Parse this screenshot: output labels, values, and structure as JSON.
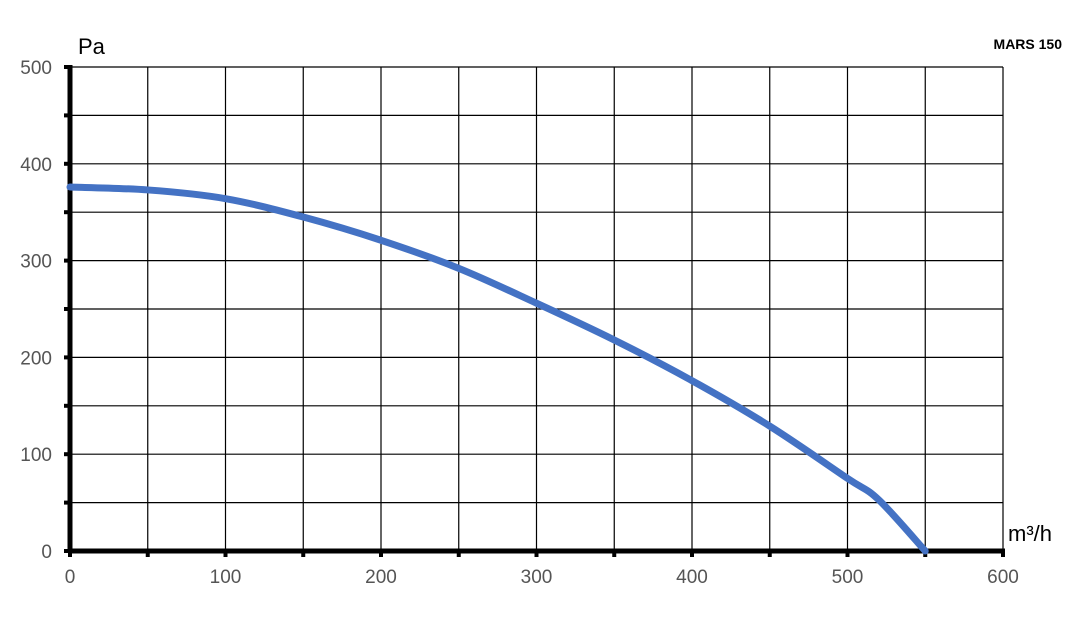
{
  "chart_data": {
    "type": "line",
    "title": "MARS 150",
    "xlabel": "m³/h",
    "ylabel": "Pa",
    "xlim": [
      0,
      600
    ],
    "ylim": [
      0,
      500
    ],
    "x_ticks": [
      "0",
      "100",
      "200",
      "300",
      "400",
      "500",
      "600"
    ],
    "y_ticks": [
      "0",
      "100",
      "200",
      "300",
      "400",
      "500"
    ],
    "grid": true,
    "grid_step": {
      "x": 50,
      "y": 50
    },
    "line_color": "#4472C4",
    "series": [
      {
        "x": [
          0,
          50,
          100,
          150,
          200,
          250,
          300,
          350,
          400,
          450,
          500,
          520,
          550
        ],
        "y": [
          376,
          373,
          364,
          345,
          321,
          292,
          256,
          218,
          176,
          129,
          75,
          53,
          0
        ]
      }
    ]
  }
}
